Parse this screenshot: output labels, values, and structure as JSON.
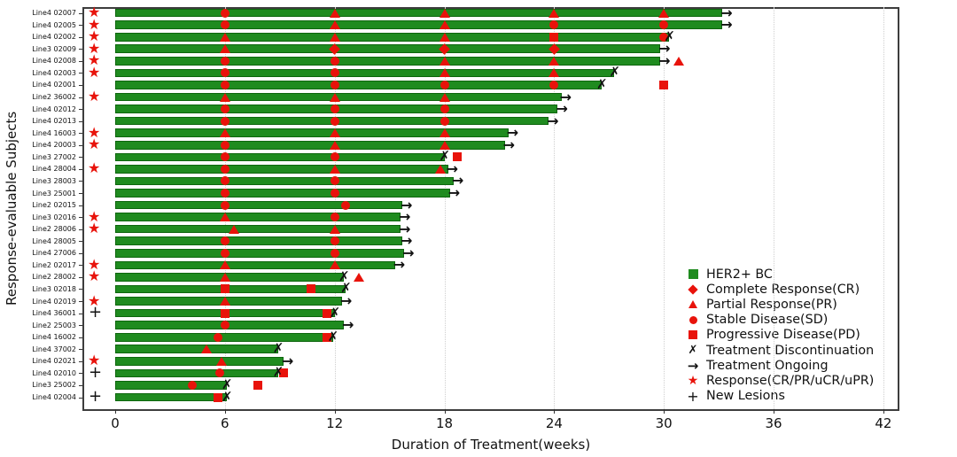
{
  "axes": {
    "y_label": "Response-evaluable Subjects",
    "x_label": "Duration of Treatment(weeks)",
    "x_ticks": [
      0,
      6,
      12,
      18,
      24,
      30,
      36,
      42
    ],
    "x_range": [
      0,
      42
    ]
  },
  "colors": {
    "bar_green": "#1f8b1f",
    "marker_red": "#e8130b",
    "symbol_black": "#111111",
    "grid": "#cfcfcf",
    "background": "#ffffff"
  },
  "legend": [
    {
      "symbol": "bar",
      "label": "HER2+ BC"
    },
    {
      "symbol": "diamond",
      "label": "Complete Response(CR)"
    },
    {
      "symbol": "triangle",
      "label": "Partial Response(PR)"
    },
    {
      "symbol": "circle",
      "label": "Stable Disease(SD)"
    },
    {
      "symbol": "square",
      "label": "Progressive Disease(PD)"
    },
    {
      "symbol": "x",
      "label": "Treatment Discontinuation"
    },
    {
      "symbol": "arrow",
      "label": "Treatment Ongoing"
    },
    {
      "symbol": "star",
      "label": "Response(CR/PR/uCR/uPR)"
    },
    {
      "symbol": "plus",
      "label": "New Lesions"
    }
  ],
  "chart_data": {
    "type": "bar",
    "orientation": "horizontal",
    "unit": "weeks",
    "title": "",
    "xlabel": "Duration of Treatment(weeks)",
    "ylabel": "Response-evaluable Subjects",
    "xlim": [
      0,
      42
    ],
    "grid": "vertical-dotted",
    "legend_position": "lower-right-inside",
    "marker_types": {
      "CR": "red-diamond",
      "PR": "red-triangle",
      "SD": "red-circle",
      "PD": "red-square"
    },
    "prefix_types": {
      "star": "Response(CR/PR/uCR/uPR)",
      "plus": "New Lesions"
    },
    "end_types": {
      "arrow": "Treatment Ongoing",
      "x": "Treatment Discontinuation"
    },
    "subjects": [
      {
        "label": "Line4 02007",
        "prefix": "star",
        "duration": 33.2,
        "end": "arrow",
        "markers": [
          {
            "w": 6,
            "t": "SD"
          },
          {
            "w": 12,
            "t": "PR"
          },
          {
            "w": 18,
            "t": "PR"
          },
          {
            "w": 24,
            "t": "PR"
          },
          {
            "w": 30,
            "t": "PR"
          }
        ]
      },
      {
        "label": "Line4 02005",
        "prefix": "star",
        "duration": 33.2,
        "end": "arrow",
        "markers": [
          {
            "w": 6,
            "t": "SD"
          },
          {
            "w": 12,
            "t": "PR"
          },
          {
            "w": 18,
            "t": "PR"
          },
          {
            "w": 24,
            "t": "SD"
          },
          {
            "w": 30,
            "t": "SD"
          }
        ]
      },
      {
        "label": "Line4 02002",
        "prefix": "star",
        "duration": 30.3,
        "end": "x",
        "markers": [
          {
            "w": 6,
            "t": "PR"
          },
          {
            "w": 12,
            "t": "PR"
          },
          {
            "w": 18,
            "t": "PR"
          },
          {
            "w": 24,
            "t": "PD"
          },
          {
            "w": 30,
            "t": "SD"
          }
        ]
      },
      {
        "label": "Line3 02009",
        "prefix": "star",
        "duration": 29.8,
        "end": "arrow",
        "markers": [
          {
            "w": 6,
            "t": "PR"
          },
          {
            "w": 12,
            "t": "CR"
          },
          {
            "w": 18,
            "t": "CR"
          },
          {
            "w": 24,
            "t": "CR"
          }
        ]
      },
      {
        "label": "Line4 02008",
        "prefix": "star",
        "duration": 29.8,
        "end": "arrow",
        "markers": [
          {
            "w": 6,
            "t": "SD"
          },
          {
            "w": 12,
            "t": "SD"
          },
          {
            "w": 18,
            "t": "PR"
          },
          {
            "w": 24,
            "t": "PR"
          },
          {
            "w": 30.8,
            "t": "PR"
          }
        ]
      },
      {
        "label": "Line4 02003",
        "prefix": "star",
        "duration": 27.3,
        "end": "x",
        "markers": [
          {
            "w": 6,
            "t": "SD"
          },
          {
            "w": 12,
            "t": "SD"
          },
          {
            "w": 18,
            "t": "PR"
          },
          {
            "w": 24,
            "t": "PR"
          }
        ]
      },
      {
        "label": "Line4 02001",
        "prefix": "",
        "duration": 26.6,
        "end": "x",
        "markers": [
          {
            "w": 6,
            "t": "SD"
          },
          {
            "w": 12,
            "t": "SD"
          },
          {
            "w": 18,
            "t": "SD"
          },
          {
            "w": 24,
            "t": "SD"
          },
          {
            "w": 30,
            "t": "PD"
          }
        ]
      },
      {
        "label": "Line2 36002",
        "prefix": "star",
        "duration": 24.4,
        "end": "arrow",
        "markers": [
          {
            "w": 6,
            "t": "PR"
          },
          {
            "w": 12,
            "t": "PR"
          },
          {
            "w": 18,
            "t": "PR"
          }
        ]
      },
      {
        "label": "Line4 02012",
        "prefix": "",
        "duration": 24.2,
        "end": "arrow",
        "markers": [
          {
            "w": 6,
            "t": "SD"
          },
          {
            "w": 12,
            "t": "SD"
          },
          {
            "w": 18,
            "t": "SD"
          }
        ]
      },
      {
        "label": "Line4 02013",
        "prefix": "",
        "duration": 23.7,
        "end": "arrow",
        "markers": [
          {
            "w": 6,
            "t": "SD"
          },
          {
            "w": 12,
            "t": "SD"
          },
          {
            "w": 18,
            "t": "SD"
          }
        ]
      },
      {
        "label": "Line4 16003",
        "prefix": "star",
        "duration": 21.5,
        "end": "arrow",
        "markers": [
          {
            "w": 6,
            "t": "PR"
          },
          {
            "w": 12,
            "t": "PR"
          },
          {
            "w": 18,
            "t": "PR"
          }
        ]
      },
      {
        "label": "Line4 20003",
        "prefix": "star",
        "duration": 21.3,
        "end": "arrow",
        "markers": [
          {
            "w": 6,
            "t": "SD"
          },
          {
            "w": 12,
            "t": "PR"
          },
          {
            "w": 18,
            "t": "PR"
          }
        ]
      },
      {
        "label": "Line3 27002",
        "prefix": "",
        "duration": 18.0,
        "end": "x",
        "markers": [
          {
            "w": 6,
            "t": "SD"
          },
          {
            "w": 12,
            "t": "SD"
          },
          {
            "w": 18.7,
            "t": "PD"
          }
        ]
      },
      {
        "label": "Line4 28004",
        "prefix": "star",
        "duration": 18.2,
        "end": "arrow",
        "markers": [
          {
            "w": 6,
            "t": "SD"
          },
          {
            "w": 12,
            "t": "PR"
          },
          {
            "w": 17.8,
            "t": "PR"
          }
        ]
      },
      {
        "label": "Line3 28003",
        "prefix": "",
        "duration": 18.5,
        "end": "arrow",
        "markers": [
          {
            "w": 6,
            "t": "SD"
          },
          {
            "w": 12,
            "t": "SD"
          }
        ]
      },
      {
        "label": "Line3 25001",
        "prefix": "",
        "duration": 18.3,
        "end": "arrow",
        "markers": [
          {
            "w": 6,
            "t": "SD"
          },
          {
            "w": 12,
            "t": "SD"
          }
        ]
      },
      {
        "label": "Line2 02015",
        "prefix": "",
        "duration": 15.7,
        "end": "arrow",
        "markers": [
          {
            "w": 6,
            "t": "SD"
          },
          {
            "w": 12.6,
            "t": "SD"
          }
        ]
      },
      {
        "label": "Line3 02016",
        "prefix": "star",
        "duration": 15.6,
        "end": "arrow",
        "markers": [
          {
            "w": 6,
            "t": "PR"
          },
          {
            "w": 12,
            "t": "SD"
          }
        ]
      },
      {
        "label": "Line2 28006",
        "prefix": "star",
        "duration": 15.6,
        "end": "arrow",
        "markers": [
          {
            "w": 6.5,
            "t": "PR"
          },
          {
            "w": 12,
            "t": "PR"
          }
        ]
      },
      {
        "label": "Line4 28005",
        "prefix": "",
        "duration": 15.7,
        "end": "arrow",
        "markers": [
          {
            "w": 6,
            "t": "SD"
          },
          {
            "w": 12,
            "t": "SD"
          }
        ]
      },
      {
        "label": "Line4 27006",
        "prefix": "",
        "duration": 15.8,
        "end": "arrow",
        "markers": [
          {
            "w": 6,
            "t": "SD"
          },
          {
            "w": 12,
            "t": "SD"
          }
        ]
      },
      {
        "label": "Line2 02017",
        "prefix": "star",
        "duration": 15.3,
        "end": "arrow",
        "markers": [
          {
            "w": 6,
            "t": "PR"
          },
          {
            "w": 12,
            "t": "PR"
          }
        ]
      },
      {
        "label": "Line2 28002",
        "prefix": "star",
        "duration": 12.5,
        "end": "x",
        "markers": [
          {
            "w": 6,
            "t": "PR"
          },
          {
            "w": 13.3,
            "t": "PR"
          }
        ]
      },
      {
        "label": "Line3 02018",
        "prefix": "",
        "duration": 12.6,
        "end": "x",
        "markers": [
          {
            "w": 6,
            "t": "PD"
          },
          {
            "w": 10.7,
            "t": "PD"
          }
        ]
      },
      {
        "label": "Line4 02019",
        "prefix": "star",
        "duration": 12.4,
        "end": "arrow",
        "markers": [
          {
            "w": 6,
            "t": "PR"
          }
        ]
      },
      {
        "label": "Line4 36001",
        "prefix": "plus",
        "duration": 12.0,
        "end": "x",
        "markers": [
          {
            "w": 6,
            "t": "PD"
          },
          {
            "w": 11.6,
            "t": "PD"
          }
        ]
      },
      {
        "label": "Line2 25003",
        "prefix": "",
        "duration": 12.5,
        "end": "arrow",
        "markers": [
          {
            "w": 6,
            "t": "SD"
          }
        ]
      },
      {
        "label": "Line4 16002",
        "prefix": "",
        "duration": 11.9,
        "end": "x",
        "markers": [
          {
            "w": 5.6,
            "t": "SD"
          },
          {
            "w": 11.6,
            "t": "PD"
          }
        ]
      },
      {
        "label": "Line4 37002",
        "prefix": "",
        "duration": 8.9,
        "end": "x",
        "markers": [
          {
            "w": 5.0,
            "t": "PR"
          }
        ]
      },
      {
        "label": "Line4 02021",
        "prefix": "star",
        "duration": 9.2,
        "end": "arrow",
        "markers": [
          {
            "w": 5.8,
            "t": "PR"
          }
        ]
      },
      {
        "label": "Line4 02010",
        "prefix": "plus",
        "duration": 8.9,
        "end": "x",
        "markers": [
          {
            "w": 5.7,
            "t": "SD"
          },
          {
            "w": 9.2,
            "t": "PD"
          }
        ]
      },
      {
        "label": "Line3 25002",
        "prefix": "",
        "duration": 6.1,
        "end": "x",
        "markers": [
          {
            "w": 4.2,
            "t": "SD"
          },
          {
            "w": 7.8,
            "t": "PD"
          }
        ]
      },
      {
        "label": "Line4 02004",
        "prefix": "plus",
        "duration": 6.1,
        "end": "x",
        "markers": [
          {
            "w": 5.6,
            "t": "PD"
          }
        ]
      }
    ]
  }
}
